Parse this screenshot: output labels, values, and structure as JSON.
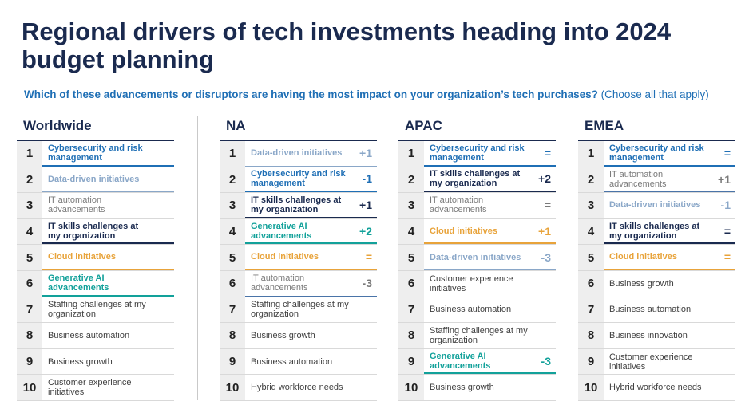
{
  "title": "Regional drivers of tech investments heading into 2024 budget planning",
  "question": "Which of these advancements or disruptors are having the most impact on your organization’s tech purchases?",
  "question_note": "(Choose all that apply)",
  "colors": {
    "title": "#1a2a4f",
    "cybersecurity": "#1f6fb5",
    "data_driven": "#8aa7c8",
    "it_automation": "#4a74a8",
    "it_skills": "#1a2a4f",
    "cloud": "#e8a33a",
    "generative_ai": "#12a19a"
  },
  "regions": [
    {
      "name": "Worldwide",
      "rows": [
        {
          "rank": "1",
          "label": "Cybersecurity and risk management",
          "change": "",
          "category": "cyber"
        },
        {
          "rank": "2",
          "label": "Data-driven initiatives",
          "change": "",
          "category": "data"
        },
        {
          "rank": "3",
          "label": "IT automation advancements",
          "change": "",
          "category": "it"
        },
        {
          "rank": "4",
          "label": "IT skills challenges at my organization",
          "change": "",
          "category": "skills"
        },
        {
          "rank": "5",
          "label": "Cloud initiatives",
          "change": "",
          "category": "cloud"
        },
        {
          "rank": "6",
          "label": "Generative AI advancements",
          "change": "",
          "category": "genai"
        },
        {
          "rank": "7",
          "label": "Staffing challenges at my organization",
          "change": "",
          "category": "plain"
        },
        {
          "rank": "8",
          "label": "Business automation",
          "change": "",
          "category": "plain"
        },
        {
          "rank": "9",
          "label": "Business growth",
          "change": "",
          "category": "plain"
        },
        {
          "rank": "10",
          "label": "Customer experience initiatives",
          "change": "",
          "category": "plain"
        }
      ]
    },
    {
      "name": "NA",
      "rows": [
        {
          "rank": "1",
          "label": "Data-driven initiatives",
          "change": "+1",
          "category": "data"
        },
        {
          "rank": "2",
          "label": "Cybersecurity and risk management",
          "change": "-1",
          "category": "cyber"
        },
        {
          "rank": "3",
          "label": "IT skills challenges at my organization",
          "change": "+1",
          "category": "skills"
        },
        {
          "rank": "4",
          "label": "Generative AI advancements",
          "change": "+2",
          "category": "genai"
        },
        {
          "rank": "5",
          "label": "Cloud initiatives",
          "change": "=",
          "category": "cloud"
        },
        {
          "rank": "6",
          "label": "IT automation advancements",
          "change": "-3",
          "category": "it"
        },
        {
          "rank": "7",
          "label": "Staffing challenges at my organization",
          "change": "",
          "category": "plain"
        },
        {
          "rank": "8",
          "label": "Business growth",
          "change": "",
          "category": "plain"
        },
        {
          "rank": "9",
          "label": "Business automation",
          "change": "",
          "category": "plain"
        },
        {
          "rank": "10",
          "label": "Hybrid workforce needs",
          "change": "",
          "category": "plain"
        }
      ]
    },
    {
      "name": "APAC",
      "rows": [
        {
          "rank": "1",
          "label": "Cybersecurity and risk management",
          "change": "=",
          "category": "cyber"
        },
        {
          "rank": "2",
          "label": "IT skills challenges at my organization",
          "change": "+2",
          "category": "skills"
        },
        {
          "rank": "3",
          "label": "IT automation advancements",
          "change": "=",
          "category": "it"
        },
        {
          "rank": "4",
          "label": "Cloud initiatives",
          "change": "+1",
          "category": "cloud"
        },
        {
          "rank": "5",
          "label": "Data-driven initiatives",
          "change": "-3",
          "category": "data"
        },
        {
          "rank": "6",
          "label": "Customer experience initiatives",
          "change": "",
          "category": "plain"
        },
        {
          "rank": "7",
          "label": "Business automation",
          "change": "",
          "category": "plain"
        },
        {
          "rank": "8",
          "label": "Staffing challenges at my organization",
          "change": "",
          "category": "plain"
        },
        {
          "rank": "9",
          "label": "Generative AI advancements",
          "change": "-3",
          "category": "genai"
        },
        {
          "rank": "10",
          "label": "Business growth",
          "change": "",
          "category": "plain"
        }
      ]
    },
    {
      "name": "EMEA",
      "rows": [
        {
          "rank": "1",
          "label": "Cybersecurity and risk management",
          "change": "=",
          "category": "cyber"
        },
        {
          "rank": "2",
          "label": "IT automation advancements",
          "change": "+1",
          "category": "it"
        },
        {
          "rank": "3",
          "label": "Data-driven initiatives",
          "change": "-1",
          "category": "data"
        },
        {
          "rank": "4",
          "label": "IT skills challenges at my organization",
          "change": "=",
          "category": "skills"
        },
        {
          "rank": "5",
          "label": "Cloud initiatives",
          "change": "=",
          "category": "cloud"
        },
        {
          "rank": "6",
          "label": "Business growth",
          "change": "",
          "category": "plain"
        },
        {
          "rank": "7",
          "label": "Business automation",
          "change": "",
          "category": "plain"
        },
        {
          "rank": "8",
          "label": "Business innovation",
          "change": "",
          "category": "plain"
        },
        {
          "rank": "9",
          "label": "Customer experience initiatives",
          "change": "",
          "category": "plain"
        },
        {
          "rank": "10",
          "label": "Hybrid workforce needs",
          "change": "",
          "category": "plain"
        }
      ]
    }
  ]
}
